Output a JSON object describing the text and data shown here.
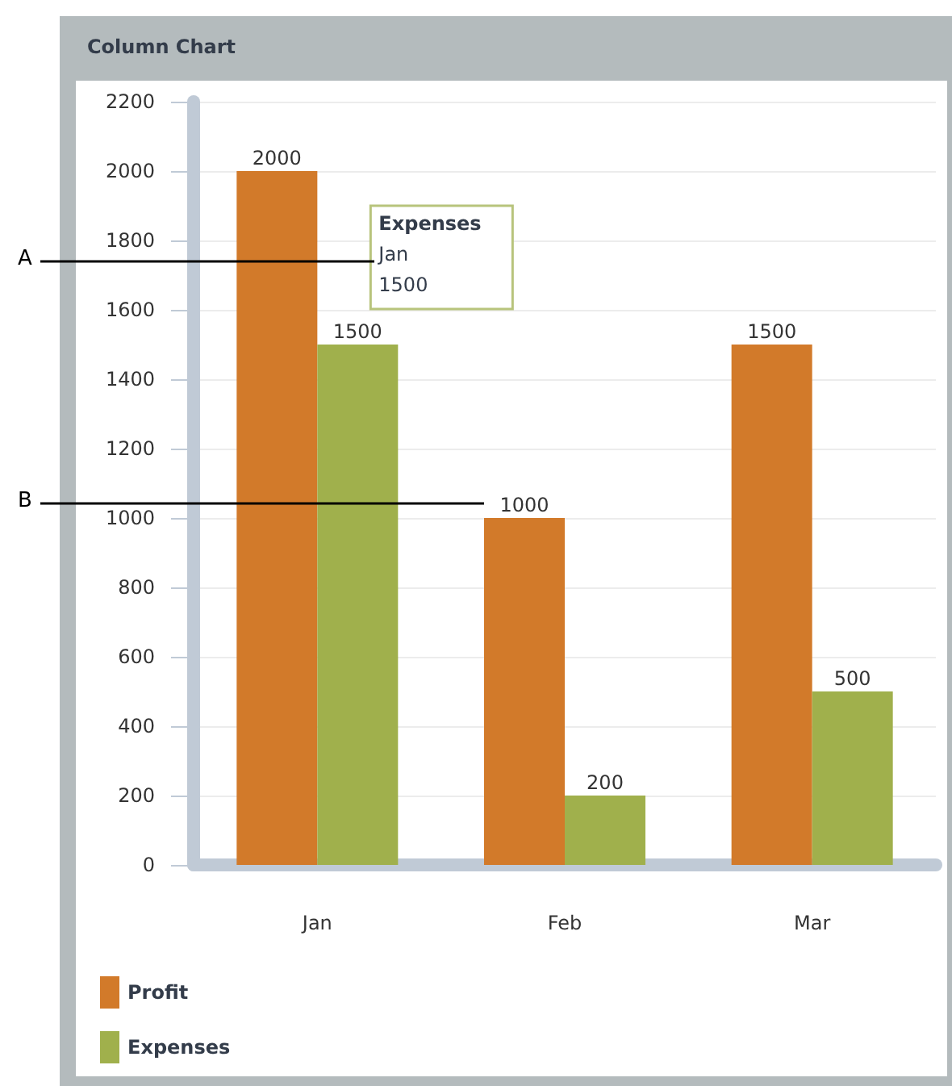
{
  "chart_data": {
    "type": "bar",
    "title": "Column Chart",
    "categories": [
      "Jan",
      "Feb",
      "Mar"
    ],
    "series": [
      {
        "name": "Profit",
        "color": "#d27a2a",
        "values": [
          2000,
          1000,
          1500
        ]
      },
      {
        "name": "Expenses",
        "color": "#a0b04c",
        "values": [
          1500,
          200,
          500
        ]
      }
    ],
    "ylim": [
      0,
      2200
    ],
    "yticks": [
      0,
      200,
      400,
      600,
      800,
      1000,
      1200,
      1400,
      1600,
      1800,
      2000,
      2200
    ],
    "grid": "y",
    "legend": "bottom left",
    "data_labels": true,
    "annotations": [
      "Expenses\nJan\n1500",
      "A",
      "B"
    ]
  }
}
